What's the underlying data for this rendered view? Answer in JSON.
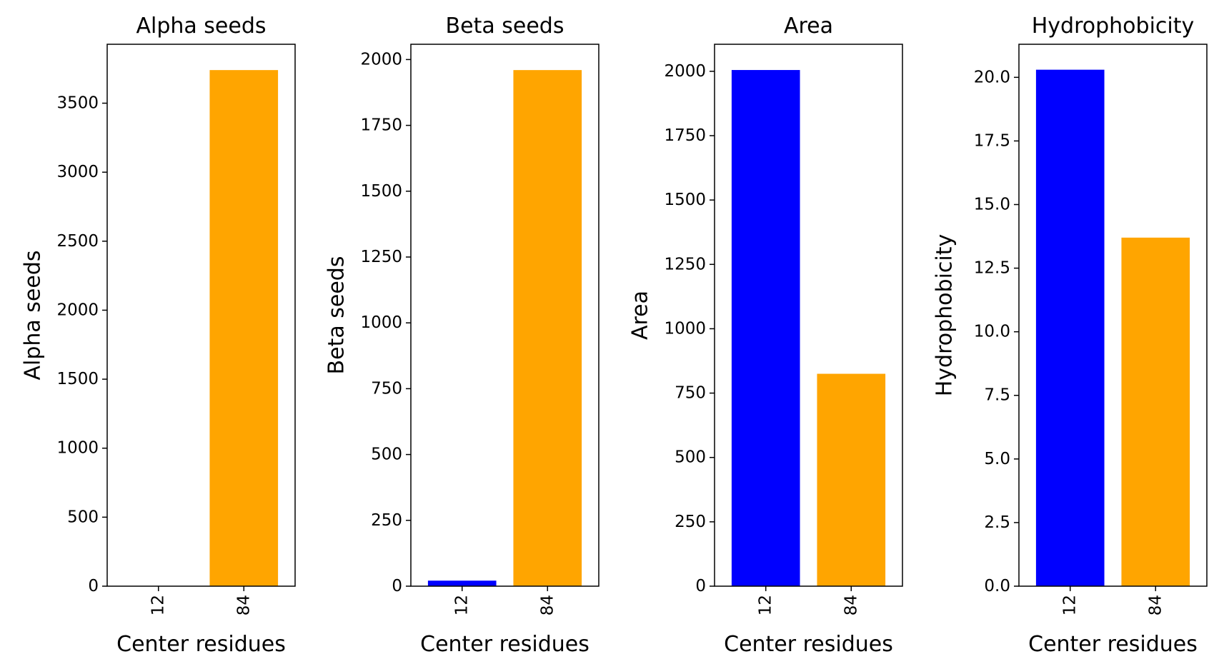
{
  "figure": {
    "shared_xlabel": "Center residues"
  },
  "chart_data": [
    {
      "type": "bar",
      "title": "Alpha seeds",
      "xlabel": "Center residues",
      "ylabel": "Alpha seeds",
      "categories": [
        "12",
        "84"
      ],
      "values": [
        0,
        3740
      ],
      "colors": [
        "#0000ff",
        "#ffa500"
      ],
      "ylim": [
        0,
        3927
      ],
      "yticks": [
        0,
        500,
        1000,
        1500,
        2000,
        2500,
        3000,
        3500
      ],
      "ytick_labels": [
        "0",
        "500",
        "1000",
        "1500",
        "2000",
        "2500",
        "3000",
        "3500"
      ],
      "grid": false,
      "legend": "none"
    },
    {
      "type": "bar",
      "title": "Beta seeds",
      "xlabel": "Center residues",
      "ylabel": "Beta seeds",
      "categories": [
        "12",
        "84"
      ],
      "values": [
        21,
        1960
      ],
      "colors": [
        "#0000ff",
        "#ffa500"
      ],
      "ylim": [
        0,
        2058
      ],
      "yticks": [
        0,
        250,
        500,
        750,
        1000,
        1250,
        1500,
        1750,
        2000
      ],
      "ytick_labels": [
        "0",
        "250",
        "500",
        "750",
        "1000",
        "1250",
        "1500",
        "1750",
        "2000"
      ],
      "grid": false,
      "legend": "none"
    },
    {
      "type": "bar",
      "title": "Area",
      "xlabel": "Center residues",
      "ylabel": "Area",
      "categories": [
        "12",
        "84"
      ],
      "values": [
        2005,
        825
      ],
      "colors": [
        "#0000ff",
        "#ffa500"
      ],
      "ylim": [
        0,
        2105
      ],
      "yticks": [
        0,
        250,
        500,
        750,
        1000,
        1250,
        1500,
        1750,
        2000
      ],
      "ytick_labels": [
        "0",
        "250",
        "500",
        "750",
        "1000",
        "1250",
        "1500",
        "1750",
        "2000"
      ],
      "grid": false,
      "legend": "none"
    },
    {
      "type": "bar",
      "title": "Hydrophobicity",
      "xlabel": "Center residues",
      "ylabel": "Hydrophobicity",
      "categories": [
        "12",
        "84"
      ],
      "values": [
        20.3,
        13.7
      ],
      "colors": [
        "#0000ff",
        "#ffa500"
      ],
      "ylim": [
        0,
        21.3
      ],
      "yticks": [
        0,
        2.5,
        5,
        7.5,
        10,
        12.5,
        15,
        17.5,
        20
      ],
      "ytick_labels": [
        "0.0",
        "2.5",
        "5.0",
        "7.5",
        "10.0",
        "12.5",
        "15.0",
        "17.5",
        "20.0"
      ],
      "grid": false,
      "legend": "none"
    }
  ]
}
